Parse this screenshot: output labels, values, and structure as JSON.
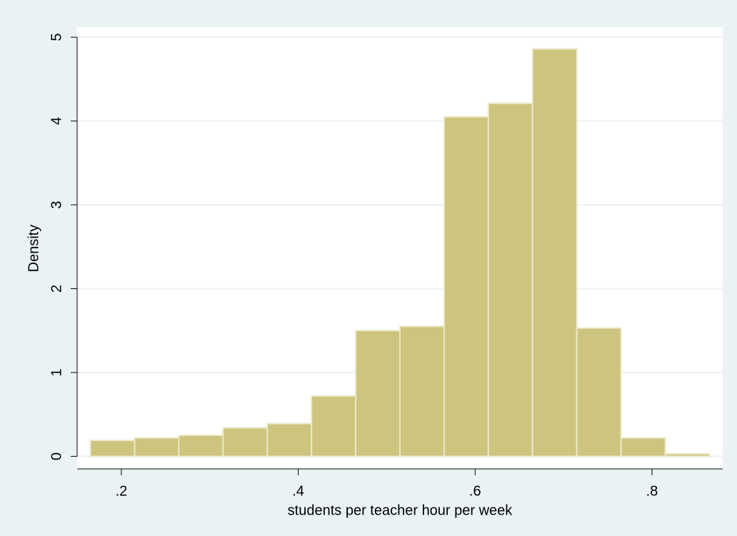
{
  "chart_data": {
    "type": "histogram",
    "x_label": "students per teacher hour per week",
    "y_label": "Density",
    "bins": [
      0.165,
      0.215,
      0.265,
      0.315,
      0.365,
      0.415,
      0.465,
      0.515,
      0.565,
      0.615,
      0.665,
      0.715,
      0.765,
      0.815,
      0.865
    ],
    "values": [
      0.19,
      0.22,
      0.25,
      0.34,
      0.39,
      0.72,
      1.5,
      1.55,
      4.05,
      4.21,
      4.86,
      1.53,
      0.22,
      0.03
    ],
    "color": "#cdc47e",
    "xlim": [
      0.15,
      0.88
    ],
    "ylim": [
      -0.15,
      5.12
    ],
    "xticks": [
      {
        "value": 0.2,
        "label": ".2"
      },
      {
        "value": 0.4,
        "label": ".4"
      },
      {
        "value": 0.6,
        "label": ".6"
      },
      {
        "value": 0.8,
        "label": ".8"
      }
    ],
    "yticks": [
      0,
      1,
      2,
      3,
      4,
      5
    ],
    "grid": true
  }
}
